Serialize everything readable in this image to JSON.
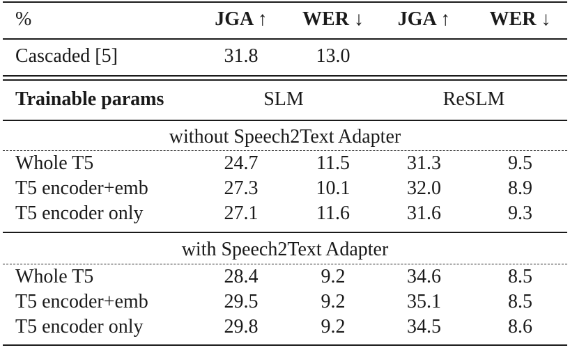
{
  "header": {
    "label": "%",
    "cols": [
      "JGA ↑",
      "WER ↓",
      "JGA ↑",
      "WER ↓"
    ]
  },
  "cascaded": {
    "label": "Cascaded [5]",
    "values": [
      "31.8",
      "13.0",
      "",
      ""
    ]
  },
  "subheader": {
    "label": "Trainable params",
    "slm": "SLM",
    "reslm": "ReSLM"
  },
  "groups": [
    {
      "title": "without Speech2Text Adapter",
      "rows": [
        {
          "label": "Whole T5",
          "values": [
            "24.7",
            "11.5",
            "31.3",
            "9.5"
          ]
        },
        {
          "label": "T5 encoder+emb",
          "values": [
            "27.3",
            "10.1",
            "32.0",
            "8.9"
          ]
        },
        {
          "label": "T5 encoder only",
          "values": [
            "27.1",
            "11.6",
            "31.6",
            "9.3"
          ]
        }
      ]
    },
    {
      "title": "with Speech2Text Adapter",
      "rows": [
        {
          "label": "Whole T5",
          "values": [
            "28.4",
            "9.2",
            "34.6",
            "8.5"
          ]
        },
        {
          "label": "T5 encoder+emb",
          "values": [
            "29.5",
            "9.2",
            "35.1",
            "8.5"
          ]
        },
        {
          "label": "T5 encoder only",
          "values": [
            "29.8",
            "9.2",
            "34.5",
            "8.6"
          ]
        }
      ]
    }
  ]
}
